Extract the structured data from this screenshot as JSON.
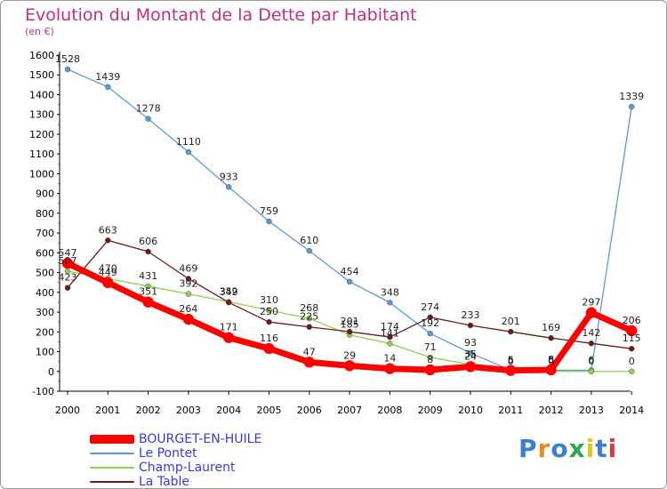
{
  "title": "Evolution du Montant de la Dette par Habitant",
  "unit": "(en €)",
  "logo": "Proxiti",
  "chart_data": {
    "type": "line",
    "x": [
      "2000",
      "2001",
      "2002",
      "2003",
      "2004",
      "2005",
      "2006",
      "2007",
      "2008",
      "2009",
      "2010",
      "2011",
      "2012",
      "2013",
      "2014"
    ],
    "ylim": [
      -100,
      1600
    ],
    "yticks": [
      -100,
      0,
      100,
      200,
      300,
      400,
      500,
      600,
      700,
      800,
      900,
      1000,
      1100,
      1200,
      1300,
      1400,
      1500,
      1600
    ],
    "grid": false,
    "legend_position": "bottom-left",
    "series": [
      {
        "name": "BOURGET-EN-HUILE",
        "color": "#ff0000",
        "values": [
          547,
          449,
          351,
          264,
          171,
          116,
          47,
          29,
          14,
          8,
          24,
          5,
          8,
          297,
          206
        ]
      },
      {
        "name": "Le Pontet",
        "color": "#5b9bd5",
        "values": [
          1528,
          1439,
          1278,
          1110,
          933,
          759,
          610,
          454,
          348,
          192,
          93,
          6,
          6,
          6,
          1339
        ]
      },
      {
        "name": "Champ-Laurent",
        "color": "#8ed14a",
        "values": [
          507,
          470,
          431,
          392,
          352,
          310,
          268,
          185,
          141,
          71,
          35,
          0,
          0,
          0,
          0
        ]
      },
      {
        "name": "La Table",
        "color": "#6b1a1a",
        "values": [
          423,
          663,
          606,
          469,
          349,
          250,
          225,
          201,
          174,
          274,
          233,
          201,
          169,
          142,
          115
        ]
      }
    ]
  }
}
